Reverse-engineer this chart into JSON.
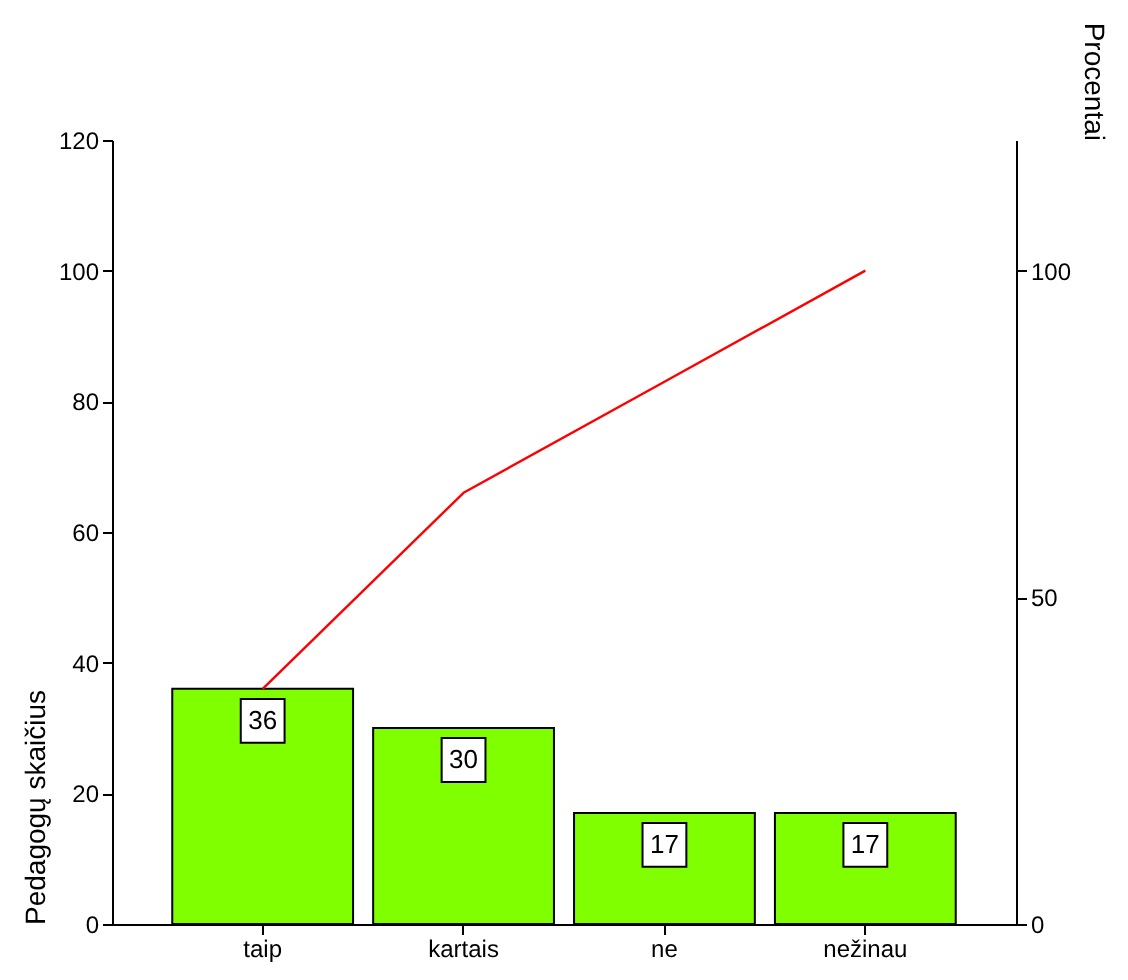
{
  "chart_data": {
    "type": "bar",
    "ylabel": "Pedagogų skaičius",
    "y2label": "Procentai",
    "categories": [
      "taip",
      "kartais",
      "ne",
      "nežinau"
    ],
    "series": [
      {
        "color": "#80ff00",
        "values": [
          36,
          30,
          17,
          17
        ],
        "data_labels": true
      },
      {
        "type": "line",
        "color": "#ff0000",
        "values": [
          36,
          66,
          83,
          100
        ],
        "axis": "y2"
      }
    ],
    "ylim": [
      0,
      120
    ],
    "yticks": [
      0,
      20,
      40,
      60,
      80,
      100,
      120
    ],
    "y2lim": [
      0,
      120
    ],
    "y2ticks": [
      0,
      50,
      100
    ],
    "grid": false,
    "legend": false
  }
}
